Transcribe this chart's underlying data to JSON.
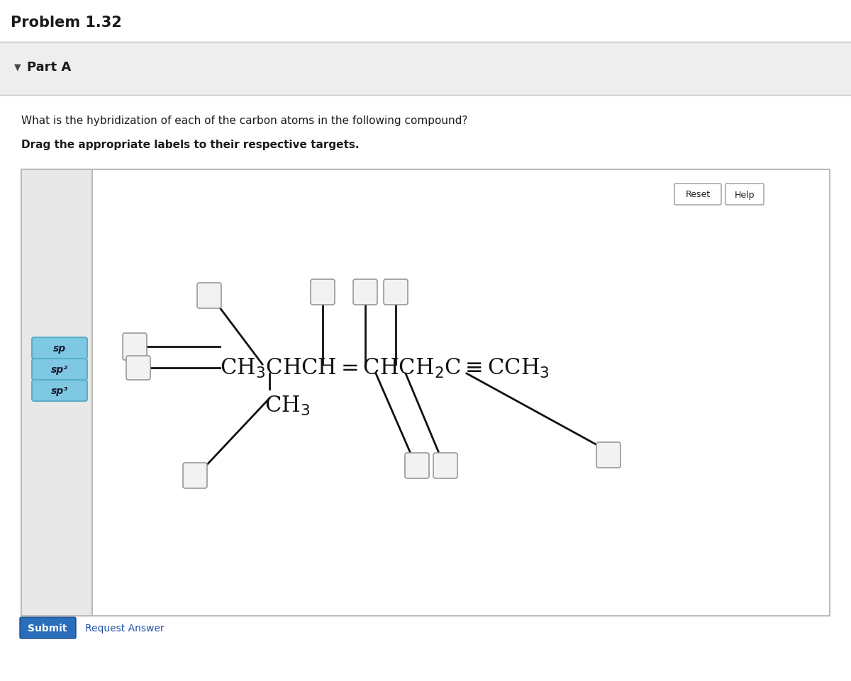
{
  "title": "Problem 1.32",
  "part_label": "Part A",
  "question_line1": "What is the hybridization of each of the carbon atoms in the following compound?",
  "question_line2": "Drag the appropriate labels to their respective targets.",
  "bg_outer": "#f0f0f0",
  "bg_white": "#ffffff",
  "bg_gray_part": "#eeeeee",
  "label_bg": "#7ec8e3",
  "label_border": "#5aafc7",
  "labels": [
    "sp",
    "sp²",
    "sp³"
  ],
  "reset_text": "Reset",
  "help_text": "Help",
  "submit_text": "Submit",
  "request_text": "Request Answer",
  "sidebar_bg": "#e0e0e0",
  "panel_border": "#bbbbbb",
  "box_bg": "#f2f2f2",
  "box_border": "#999999",
  "mol_text": "CH₃CHCH=CHCH₂C≡CCH₃",
  "branch_text": "CH₃",
  "line_color": "#111111",
  "title_sep_color": "#cccccc",
  "mol_color": "#111111",
  "submit_bg": "#2a6ebb",
  "submit_text_color": "#ffffff",
  "request_color": "#2255aa"
}
